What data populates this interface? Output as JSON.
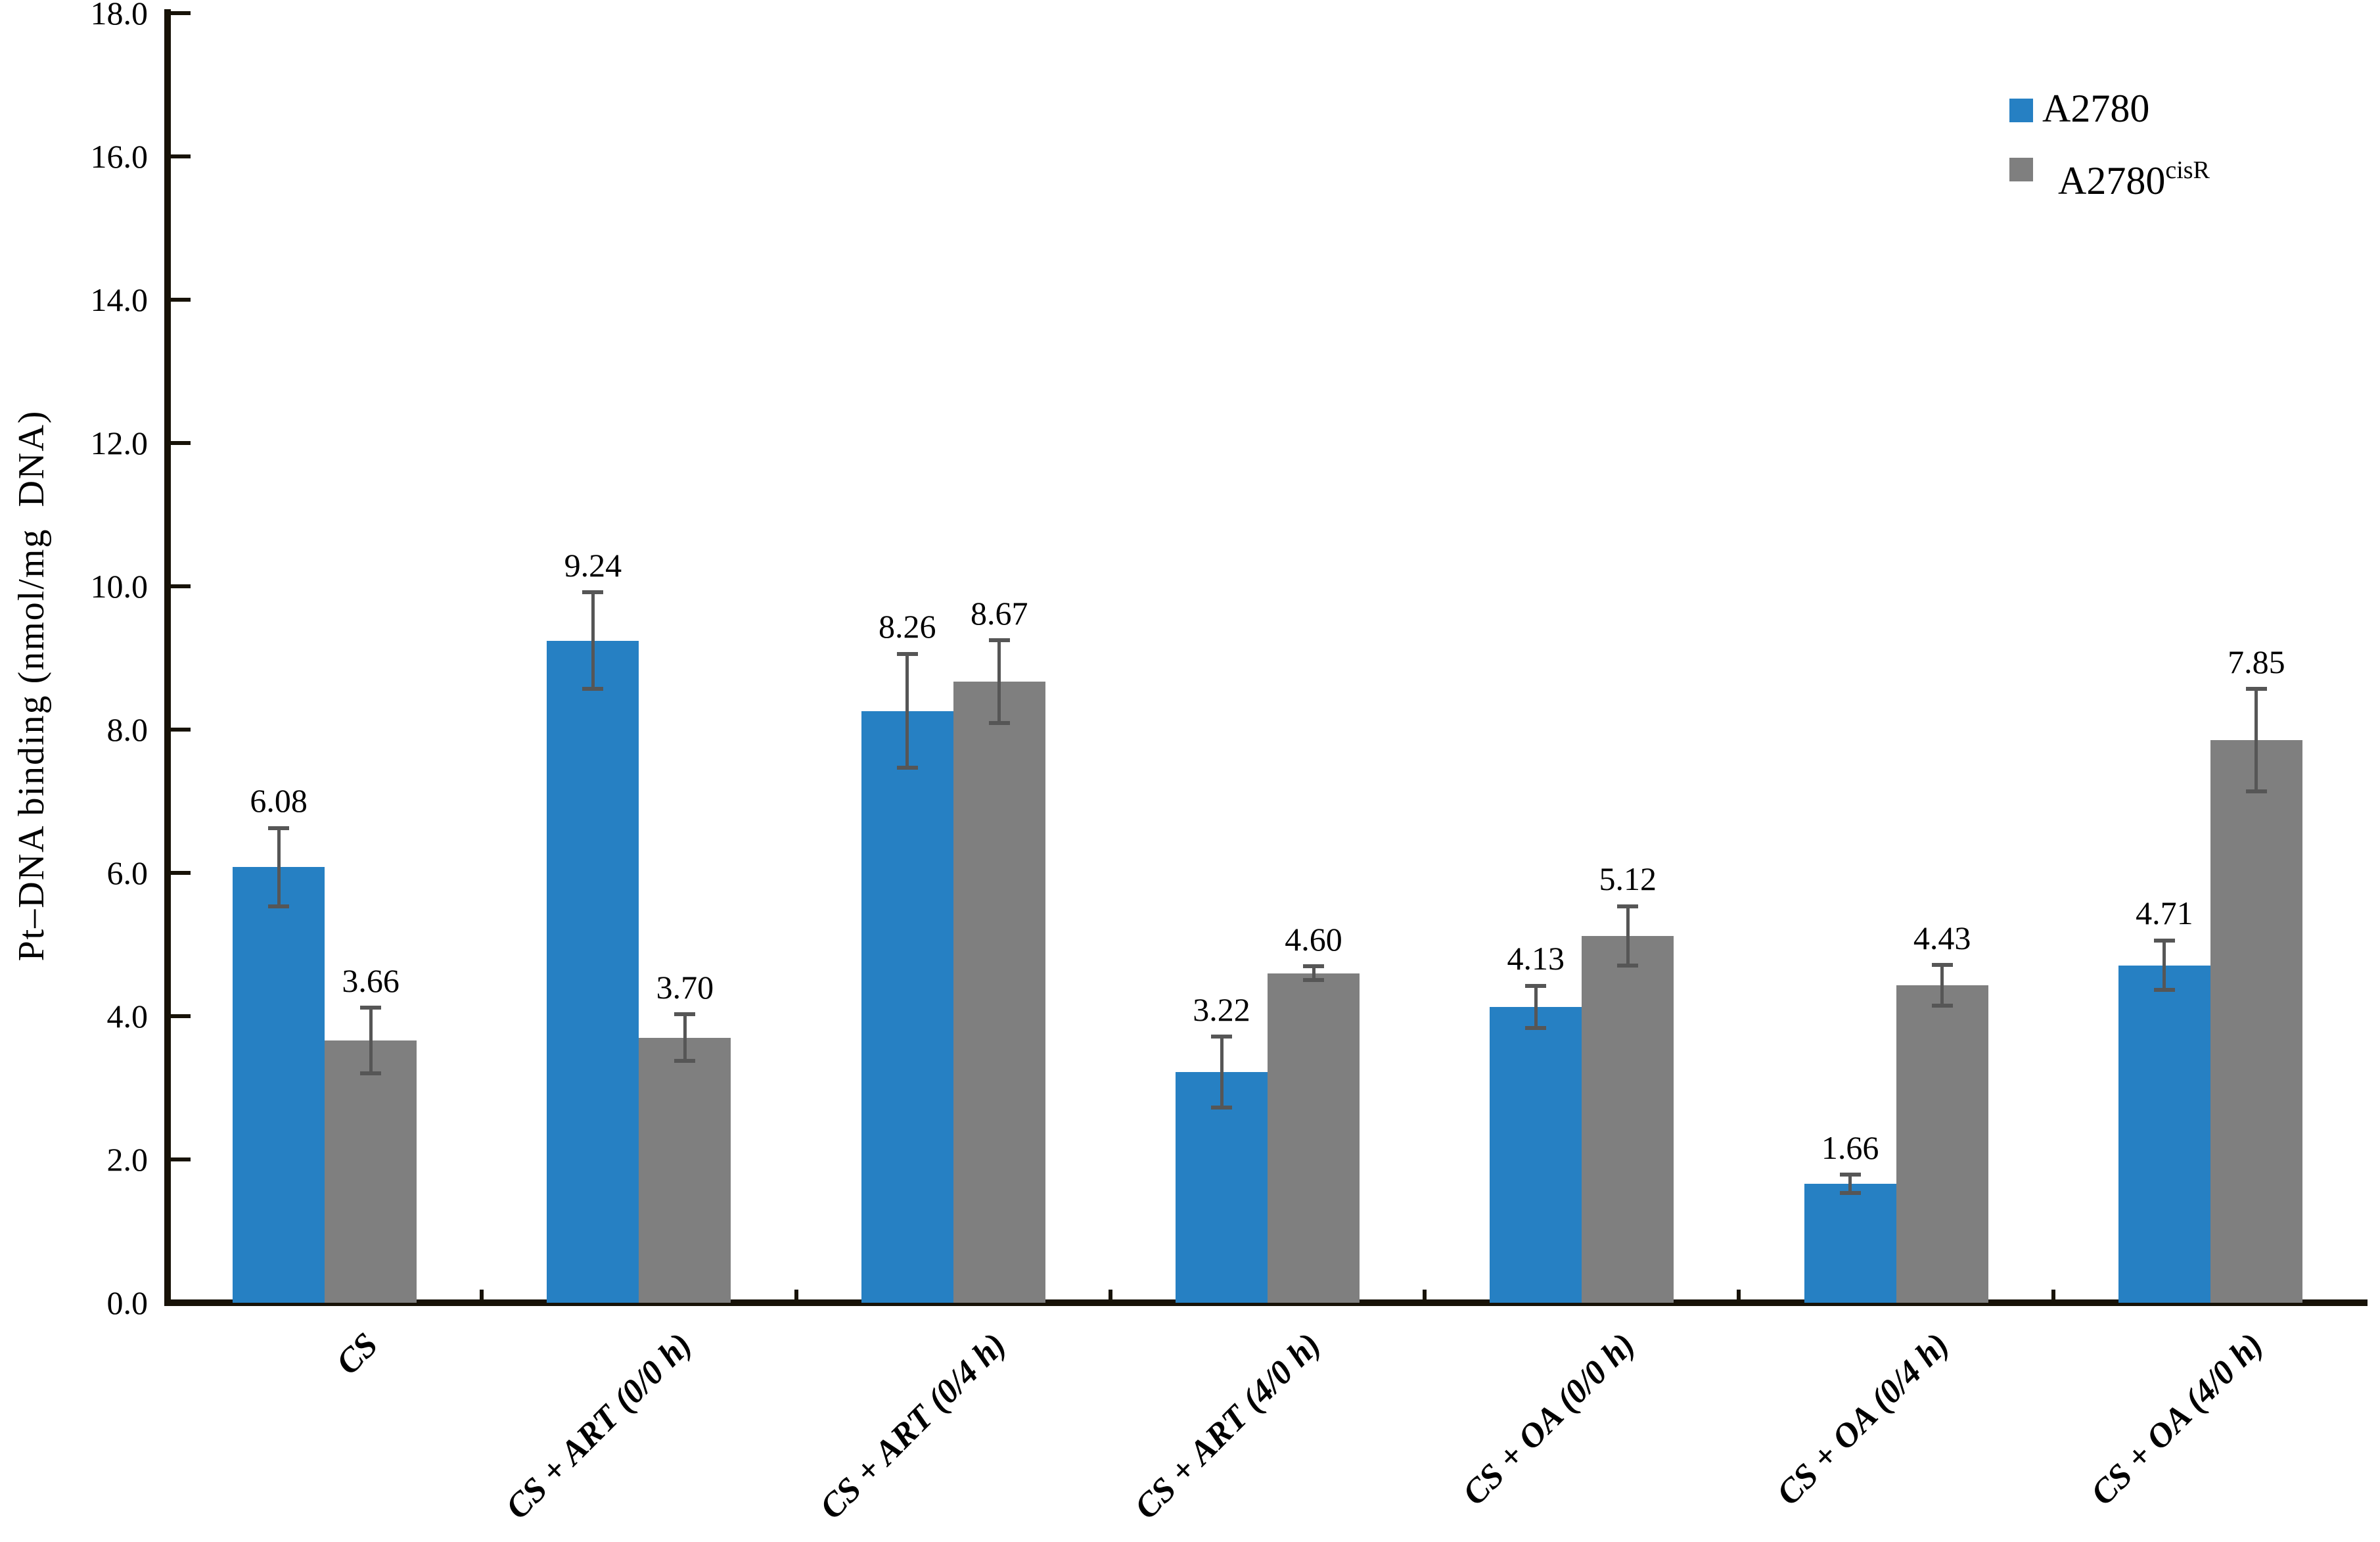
{
  "chart_data": {
    "type": "bar",
    "title": "",
    "xlabel": "",
    "ylabel": "Pt–DNA binding (nmol/mg  DNA)",
    "ylim": [
      0.0,
      18.0
    ],
    "ytick_step": 2.0,
    "ytick_labels": [
      "0.0",
      "2.0",
      "4.0",
      "6.0",
      "8.0",
      "10.0",
      "12.0",
      "14.0",
      "16.0",
      "18.0"
    ],
    "grid": false,
    "legend_position": "top-right",
    "categories": [
      "CS",
      "CS + ART (0/0 h)",
      "CS + ART (0/4 h)",
      "CS + ART (4/0 h)",
      "CS + OA (0/0 h)",
      "CS + OA (0/4 h)",
      "CS + OA (4/0 h)"
    ],
    "series": [
      {
        "name": "A2780",
        "name_superscript": "",
        "color": "#2680C3",
        "values": [
          6.08,
          9.24,
          8.26,
          3.22,
          4.13,
          1.66,
          4.71
        ],
        "value_labels": [
          "6.08",
          "9.24",
          "8.26",
          "3.22",
          "4.13",
          "1.66",
          "4.71"
        ],
        "errors": [
          0.55,
          0.68,
          0.8,
          0.5,
          0.3,
          0.13,
          0.35
        ]
      },
      {
        "name": "A2780",
        "name_superscript": "cisR",
        "color": "#7F7F7F",
        "values": [
          3.66,
          3.7,
          8.67,
          4.6,
          5.12,
          4.43,
          7.85
        ],
        "value_labels": [
          "3.66",
          "3.70",
          "8.67",
          "4.60",
          "5.12",
          "4.43",
          "7.85"
        ],
        "errors": [
          0.46,
          0.33,
          0.58,
          0.1,
          0.42,
          0.29,
          0.72
        ]
      }
    ],
    "error_bar_color": "#565656",
    "axis_color": "#171207"
  }
}
